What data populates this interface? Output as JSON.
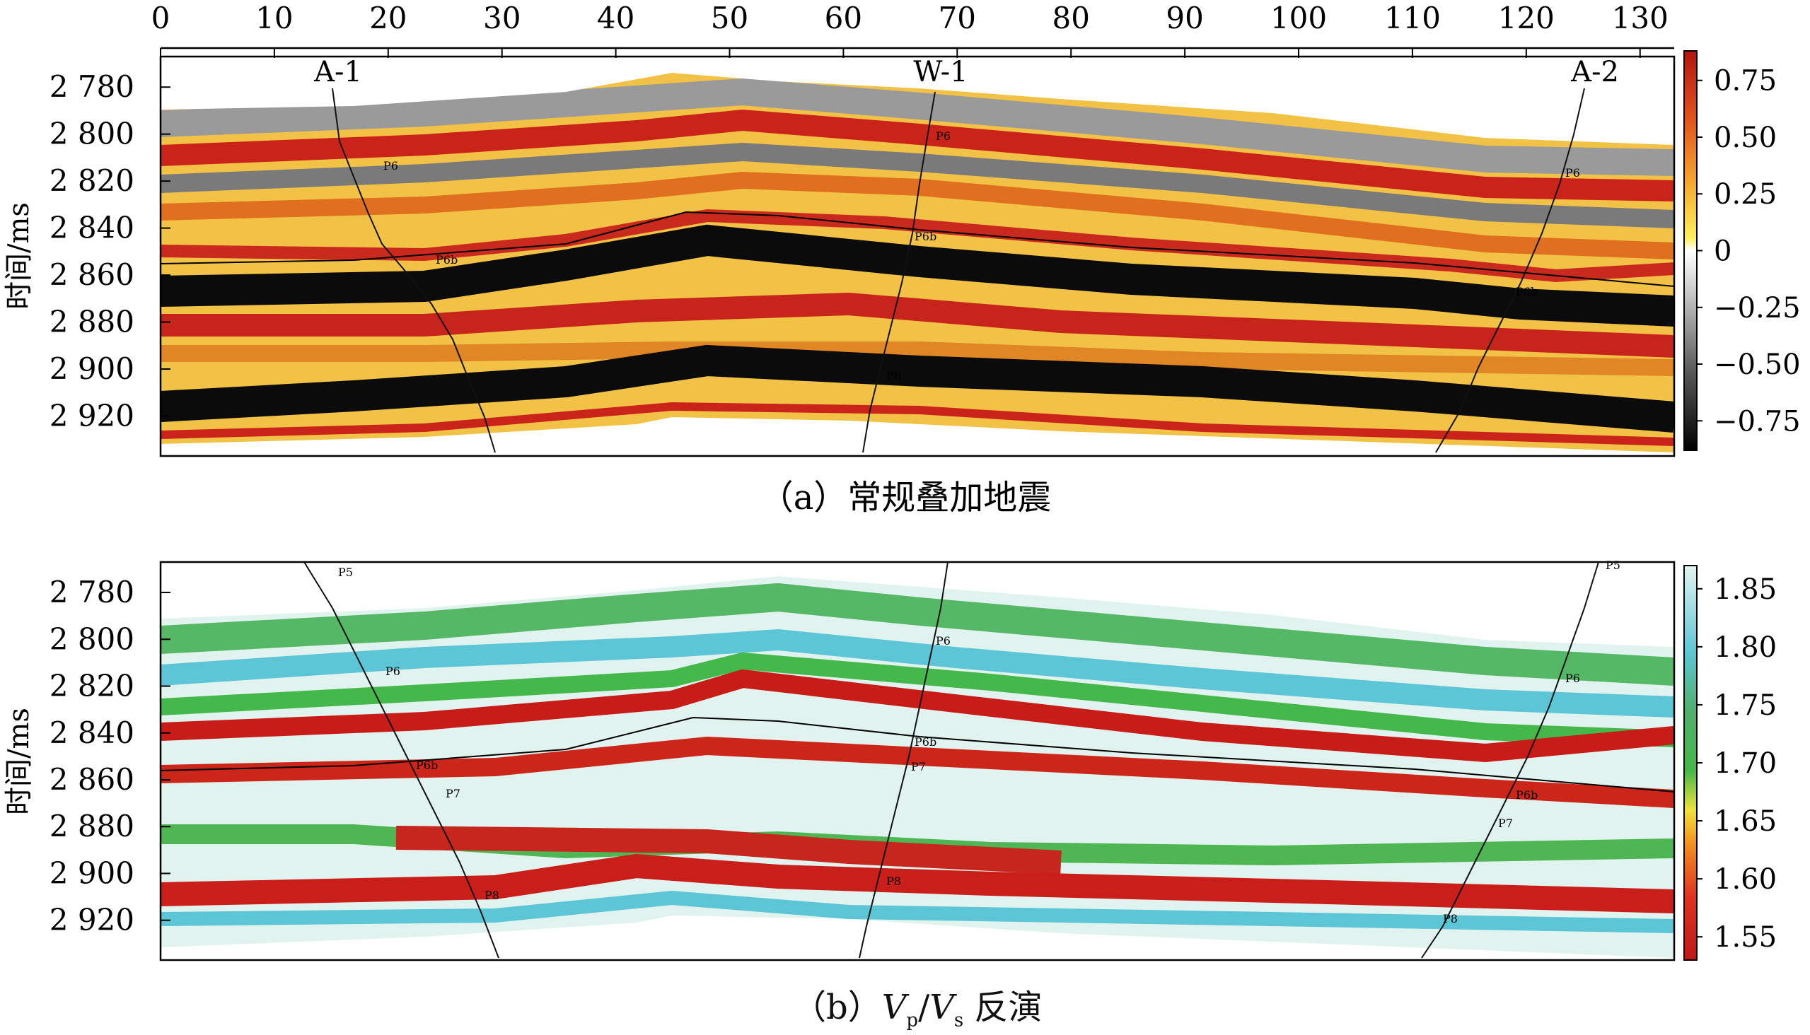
{
  "figure": {
    "x_axis": {
      "ticks": [
        "0",
        "10",
        "20",
        "30",
        "40",
        "50",
        "60",
        "70",
        "80",
        "90",
        "100",
        "110",
        "120",
        "130"
      ],
      "range": [
        0,
        133
      ]
    },
    "time_axis": {
      "label": "时间/ms",
      "ticks": [
        "2 780",
        "2 800",
        "2 820",
        "2 840",
        "2 860",
        "2 880",
        "2 900",
        "2 920"
      ],
      "range": [
        2767,
        2937
      ]
    },
    "panel_a": {
      "caption": "（a）常规叠加地震",
      "wells": [
        "A-1",
        "W-1",
        "A-2"
      ],
      "colorbar": {
        "ticks": [
          "0.75",
          "0.50",
          "0.25",
          "0",
          "−0.25",
          "−0.50",
          "−0.75"
        ],
        "range": [
          -0.88,
          0.88
        ],
        "colors": [
          "#000000",
          "#7a7a7a",
          "#ffffff",
          "#ffd640",
          "#f08a20",
          "#c21a16"
        ]
      },
      "horizon_labels": [
        "P6",
        "P6b",
        "P7",
        "P8"
      ]
    },
    "panel_b": {
      "caption_prefix": "（b）",
      "caption_v": "V",
      "caption_p": "p",
      "caption_slash": "/",
      "caption_s": "s",
      "caption_suffix": " 反演",
      "colorbar": {
        "ticks": [
          "1.85",
          "1.80",
          "1.75",
          "1.70",
          "1.65",
          "1.60",
          "1.55"
        ],
        "range": [
          1.53,
          1.87
        ],
        "colors": [
          "#c21a18",
          "#e03a20",
          "#f08a20",
          "#f2e23a",
          "#3fb84a",
          "#5cc6d6",
          "#dff2ee"
        ]
      },
      "horizon_labels": [
        "P5",
        "P6",
        "P6b",
        "P7",
        "P8"
      ]
    }
  }
}
